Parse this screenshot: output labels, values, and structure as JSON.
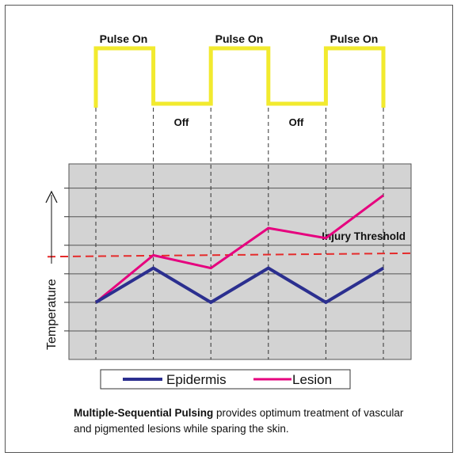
{
  "pulse_labels": {
    "on": [
      "Pulse On",
      "Pulse On",
      "Pulse On"
    ],
    "off": [
      "Off",
      "Off"
    ]
  },
  "threshold_label": "Injury Threshold",
  "y_axis_label": "Temperature",
  "legend": [
    {
      "name": "Epidermis",
      "color": "#2b2f8f"
    },
    {
      "name": "Lesion",
      "color": "#e6007e"
    }
  ],
  "caption": {
    "bold": "Multiple-Sequential Pulsing",
    "rest": " provides optimum treatment of vascular and pigmented lesions while sparing the skin."
  },
  "colors": {
    "pulse": "#f2ea2e",
    "threshold": "#e52b2b",
    "plot_bg": "#d3d3d3",
    "epidermis": "#2b2f8f",
    "lesion": "#e6007e"
  },
  "chart_data": {
    "type": "line",
    "x": [
      0,
      1,
      2,
      3,
      4,
      5
    ],
    "series": [
      {
        "name": "Epidermis",
        "values": [
          1.0,
          2.2,
          1.0,
          2.2,
          1.0,
          2.2
        ]
      },
      {
        "name": "Lesion",
        "values": [
          1.0,
          2.65,
          2.2,
          3.6,
          3.25,
          4.75
        ]
      }
    ],
    "threshold": 2.6,
    "threshold_slope": 0.12,
    "ylim": [
      -1.0,
      5.85
    ],
    "pulse": [
      "on",
      "off",
      "on",
      "off",
      "on"
    ]
  }
}
